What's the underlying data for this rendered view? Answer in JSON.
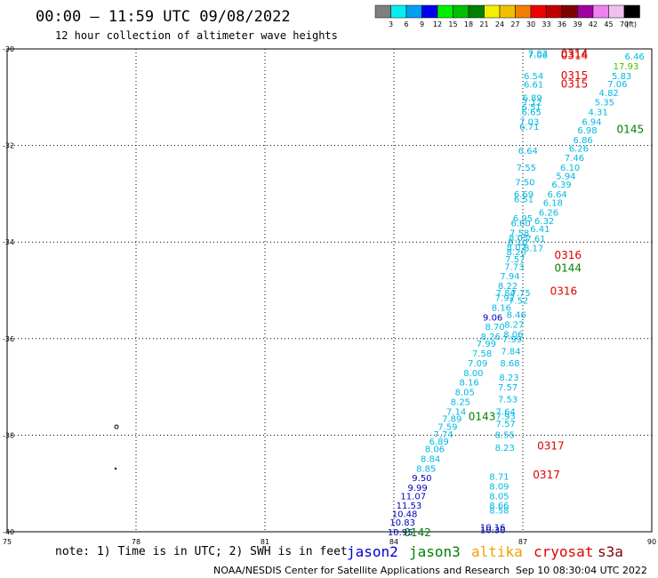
{
  "header": {
    "title": "00:00 – 11:59 UTC 09/08/2022",
    "subtitle": "12 hour collection of altimeter wave heights"
  },
  "colorbar": {
    "labels": [
      "3",
      "6",
      "9",
      "12",
      "15",
      "18",
      "21",
      "24",
      "27",
      "30",
      "33",
      "36",
      "39",
      "42",
      "45",
      "70"
    ],
    "unit": "(ft)",
    "colors": [
      "#7f7f7f",
      "#00f0f0",
      "#00a0f0",
      "#0000f0",
      "#00f000",
      "#00c000",
      "#008000",
      "#f0f000",
      "#f0c000",
      "#f08000",
      "#f00000",
      "#c00000",
      "#800000",
      "#a000a0",
      "#f080f0",
      "#f0c0f0",
      "#000000"
    ]
  },
  "footer": {
    "note": "note: 1) Time is in UTC; 2) SWH is in feet",
    "credit": "NOAA/NESDIS Center for Satellite Applications and Research",
    "timestamp": "Sep 10 08:30:04 UTC 2022",
    "missions": [
      {
        "name": "jason2",
        "color": "#0000d0"
      },
      {
        "name": "jason3",
        "color": "#008000"
      },
      {
        "name": "altika",
        "color": "#f0a000"
      },
      {
        "name": "cryosat",
        "color": "#e00000"
      },
      {
        "name": "s3a",
        "color": "#800000"
      }
    ]
  },
  "chart_data": {
    "type": "scatter",
    "xlim": [
      75,
      90
    ],
    "ylim": [
      -40,
      -30
    ],
    "x_ticks": [
      75,
      78,
      81,
      84,
      87,
      90
    ],
    "y_ticks": [
      -30,
      -32,
      -34,
      -36,
      -38,
      -40
    ],
    "grid": true,
    "colors": {
      "c": "#00b8e0",
      "b": "#0000c0",
      "g": "#008000",
      "r": "#e00000",
      "y": "#40c000"
    },
    "points": [
      {
        "lon": 87.35,
        "lat": -30.08,
        "v": "7.83",
        "c": "c"
      },
      {
        "lon": 87.35,
        "lat": -30.12,
        "v": "7.06",
        "c": "c"
      },
      {
        "lon": 87.25,
        "lat": -30.55,
        "v": "6.54",
        "c": "c"
      },
      {
        "lon": 87.25,
        "lat": -30.73,
        "v": "6.61",
        "c": "c"
      },
      {
        "lon": 87.22,
        "lat": -31.0,
        "v": "6.89",
        "c": "c"
      },
      {
        "lon": 87.22,
        "lat": -31.1,
        "v": "7.12",
        "c": "c"
      },
      {
        "lon": 87.2,
        "lat": -31.2,
        "v": "6.51",
        "c": "c"
      },
      {
        "lon": 87.2,
        "lat": -31.3,
        "v": "6.65",
        "c": "c"
      },
      {
        "lon": 87.15,
        "lat": -31.5,
        "v": "7.03",
        "c": "c"
      },
      {
        "lon": 87.15,
        "lat": -31.6,
        "v": "6.71",
        "c": "c"
      },
      {
        "lon": 87.12,
        "lat": -32.1,
        "v": "6.64",
        "c": "c"
      },
      {
        "lon": 87.08,
        "lat": -32.45,
        "v": "7.55",
        "c": "c"
      },
      {
        "lon": 87.05,
        "lat": -32.75,
        "v": "7.50",
        "c": "c"
      },
      {
        "lon": 87.02,
        "lat": -33.0,
        "v": "6.69",
        "c": "c"
      },
      {
        "lon": 87.02,
        "lat": -33.1,
        "v": "6.51",
        "c": "c"
      },
      {
        "lon": 87.0,
        "lat": -33.5,
        "v": "6.95",
        "c": "c"
      },
      {
        "lon": 86.95,
        "lat": -33.6,
        "v": "6.60",
        "c": "c"
      },
      {
        "lon": 86.92,
        "lat": -33.8,
        "v": "7.58",
        "c": "c"
      },
      {
        "lon": 86.9,
        "lat": -33.9,
        "v": "8.05",
        "c": "c"
      },
      {
        "lon": 86.88,
        "lat": -34.0,
        "v": "8.10",
        "c": "c"
      },
      {
        "lon": 86.85,
        "lat": -34.1,
        "v": "8.07",
        "c": "c"
      },
      {
        "lon": 86.85,
        "lat": -34.2,
        "v": "8.20",
        "c": "c"
      },
      {
        "lon": 86.82,
        "lat": -34.35,
        "v": "7.57",
        "c": "c"
      },
      {
        "lon": 86.8,
        "lat": -34.5,
        "v": "7.73",
        "c": "c"
      },
      {
        "lon": 86.7,
        "lat": -34.7,
        "v": "7.94",
        "c": "c"
      },
      {
        "lon": 86.65,
        "lat": -34.9,
        "v": "8.22",
        "c": "c"
      },
      {
        "lon": 86.6,
        "lat": -35.05,
        "v": "7.84",
        "c": "c"
      },
      {
        "lon": 86.58,
        "lat": -35.15,
        "v": "7.92",
        "c": "c"
      },
      {
        "lon": 86.5,
        "lat": -35.35,
        "v": "8.16",
        "c": "c"
      },
      {
        "lon": 86.3,
        "lat": -35.55,
        "v": "9.06",
        "c": "b"
      },
      {
        "lon": 86.35,
        "lat": -35.75,
        "v": "8.70",
        "c": "c"
      },
      {
        "lon": 86.25,
        "lat": -35.95,
        "v": "8.26",
        "c": "c"
      },
      {
        "lon": 86.15,
        "lat": -36.1,
        "v": "7.99",
        "c": "c"
      },
      {
        "lon": 86.05,
        "lat": -36.3,
        "v": "7.58",
        "c": "c"
      },
      {
        "lon": 85.95,
        "lat": -36.5,
        "v": "7.09",
        "c": "c"
      },
      {
        "lon": 85.85,
        "lat": -36.7,
        "v": "8.00",
        "c": "c"
      },
      {
        "lon": 85.75,
        "lat": -36.9,
        "v": "8.16",
        "c": "c"
      },
      {
        "lon": 85.65,
        "lat": -37.1,
        "v": "8.05",
        "c": "c"
      },
      {
        "lon": 85.55,
        "lat": -37.3,
        "v": "8.25",
        "c": "c"
      },
      {
        "lon": 85.45,
        "lat": -37.5,
        "v": "7.14",
        "c": "c"
      },
      {
        "lon": 85.35,
        "lat": -37.65,
        "v": "7.89",
        "c": "c"
      },
      {
        "lon": 85.25,
        "lat": -37.82,
        "v": "7.59",
        "c": "c"
      },
      {
        "lon": 85.15,
        "lat": -37.97,
        "v": "7.74",
        "c": "c"
      },
      {
        "lon": 85.05,
        "lat": -38.12,
        "v": "6.89",
        "c": "c"
      },
      {
        "lon": 84.95,
        "lat": -38.28,
        "v": "8.06",
        "c": "c"
      },
      {
        "lon": 84.85,
        "lat": -38.48,
        "v": "8.84",
        "c": "c"
      },
      {
        "lon": 84.75,
        "lat": -38.68,
        "v": "8.85",
        "c": "c"
      },
      {
        "lon": 84.65,
        "lat": -38.88,
        "v": "9.50",
        "c": "b"
      },
      {
        "lon": 84.55,
        "lat": -39.08,
        "v": "9.99",
        "c": "b"
      },
      {
        "lon": 84.45,
        "lat": -39.25,
        "v": "11.07",
        "c": "b"
      },
      {
        "lon": 84.35,
        "lat": -39.45,
        "v": "11.53",
        "c": "b"
      },
      {
        "lon": 84.25,
        "lat": -39.62,
        "v": "10.48",
        "c": "b"
      },
      {
        "lon": 84.2,
        "lat": -39.8,
        "v": "10.83",
        "c": "b"
      },
      {
        "lon": 84.15,
        "lat": -40.0,
        "v": "10.95",
        "c": "b"
      },
      {
        "lon": 89.6,
        "lat": -30.15,
        "v": "6.46",
        "c": "c"
      },
      {
        "lon": 89.4,
        "lat": -30.35,
        "v": "17.93",
        "c": "y"
      },
      {
        "lon": 89.3,
        "lat": -30.55,
        "v": "5.83",
        "c": "c"
      },
      {
        "lon": 89.2,
        "lat": -30.72,
        "v": "7.06",
        "c": "c"
      },
      {
        "lon": 89.0,
        "lat": -30.9,
        "v": "4.82",
        "c": "c"
      },
      {
        "lon": 88.9,
        "lat": -31.1,
        "v": "5.35",
        "c": "c"
      },
      {
        "lon": 88.75,
        "lat": -31.3,
        "v": "4.31",
        "c": "c"
      },
      {
        "lon": 88.6,
        "lat": -31.5,
        "v": "6.94",
        "c": "c"
      },
      {
        "lon": 88.5,
        "lat": -31.68,
        "v": "6.98",
        "c": "c"
      },
      {
        "lon": 88.4,
        "lat": -31.88,
        "v": "6.86",
        "c": "c"
      },
      {
        "lon": 88.3,
        "lat": -32.05,
        "v": "6.26",
        "c": "c"
      },
      {
        "lon": 88.2,
        "lat": -32.25,
        "v": "7.46",
        "c": "c"
      },
      {
        "lon": 88.1,
        "lat": -32.45,
        "v": "6.10",
        "c": "c"
      },
      {
        "lon": 88.0,
        "lat": -32.62,
        "v": "5.94",
        "c": "c"
      },
      {
        "lon": 87.9,
        "lat": -32.8,
        "v": "6.39",
        "c": "c"
      },
      {
        "lon": 87.8,
        "lat": -33.0,
        "v": "6.64",
        "c": "c"
      },
      {
        "lon": 87.7,
        "lat": -33.18,
        "v": "6.18",
        "c": "c"
      },
      {
        "lon": 87.6,
        "lat": -33.38,
        "v": "6.26",
        "c": "c"
      },
      {
        "lon": 87.5,
        "lat": -33.55,
        "v": "6.32",
        "c": "c"
      },
      {
        "lon": 87.4,
        "lat": -33.72,
        "v": "6.41",
        "c": "c"
      },
      {
        "lon": 87.3,
        "lat": -33.92,
        "v": "7.61",
        "c": "c"
      },
      {
        "lon": 87.25,
        "lat": -34.12,
        "v": "8.17",
        "c": "c"
      },
      {
        "lon": 86.95,
        "lat": -35.05,
        "v": "7.75",
        "c": "c"
      },
      {
        "lon": 86.9,
        "lat": -35.2,
        "v": "7.52",
        "c": "c"
      },
      {
        "lon": 86.85,
        "lat": -35.5,
        "v": "8.46",
        "c": "c"
      },
      {
        "lon": 86.8,
        "lat": -35.7,
        "v": "8.27",
        "c": "c"
      },
      {
        "lon": 86.78,
        "lat": -35.9,
        "v": "8.06",
        "c": "c"
      },
      {
        "lon": 86.75,
        "lat": -36.0,
        "v": "7.99",
        "c": "c"
      },
      {
        "lon": 86.72,
        "lat": -36.25,
        "v": "7.84",
        "c": "c"
      },
      {
        "lon": 86.7,
        "lat": -36.5,
        "v": "8.68",
        "c": "c"
      },
      {
        "lon": 86.68,
        "lat": -36.8,
        "v": "8.23",
        "c": "c"
      },
      {
        "lon": 86.65,
        "lat": -37.0,
        "v": "7.57",
        "c": "c"
      },
      {
        "lon": 86.65,
        "lat": -37.25,
        "v": "7.53",
        "c": "c"
      },
      {
        "lon": 86.6,
        "lat": -37.5,
        "v": "7.64",
        "c": "c"
      },
      {
        "lon": 86.6,
        "lat": -37.6,
        "v": "7.93",
        "c": "c"
      },
      {
        "lon": 86.6,
        "lat": -37.75,
        "v": "7.57",
        "c": "c"
      },
      {
        "lon": 86.58,
        "lat": -37.98,
        "v": "8.55",
        "c": "c"
      },
      {
        "lon": 86.58,
        "lat": -38.25,
        "v": "8.23",
        "c": "c"
      },
      {
        "lon": 86.45,
        "lat": -38.85,
        "v": "8.71",
        "c": "c"
      },
      {
        "lon": 86.45,
        "lat": -39.05,
        "v": "8.09",
        "c": "c"
      },
      {
        "lon": 86.45,
        "lat": -39.25,
        "v": "8.05",
        "c": "c"
      },
      {
        "lon": 86.45,
        "lat": -39.45,
        "v": "8.66",
        "c": "c"
      },
      {
        "lon": 86.45,
        "lat": -39.55,
        "v": "8.58",
        "c": "c"
      },
      {
        "lon": 86.3,
        "lat": -39.9,
        "v": "10.16",
        "c": "b"
      },
      {
        "lon": 86.3,
        "lat": -39.95,
        "v": "10.30",
        "c": "b"
      }
    ],
    "cycle_labels": [
      {
        "lon": 88.2,
        "lat": -30.08,
        "v": "0314",
        "c": "r"
      },
      {
        "lon": 88.2,
        "lat": -30.12,
        "v": "0314",
        "c": "r"
      },
      {
        "lon": 88.2,
        "lat": -30.53,
        "v": "0315",
        "c": "r"
      },
      {
        "lon": 88.2,
        "lat": -30.71,
        "v": "0315",
        "c": "r"
      },
      {
        "lon": 89.5,
        "lat": -31.65,
        "v": "0145",
        "c": "g"
      },
      {
        "lon": 88.05,
        "lat": -34.25,
        "v": "0316",
        "c": "r"
      },
      {
        "lon": 88.05,
        "lat": -34.52,
        "v": "0144",
        "c": "g"
      },
      {
        "lon": 87.95,
        "lat": -35.0,
        "v": "0316",
        "c": "r"
      },
      {
        "lon": 86.05,
        "lat": -37.6,
        "v": "0143",
        "c": "g"
      },
      {
        "lon": 87.65,
        "lat": -38.2,
        "v": "0317",
        "c": "r"
      },
      {
        "lon": 87.55,
        "lat": -38.8,
        "v": "0317",
        "c": "r"
      },
      {
        "lon": 84.55,
        "lat": -40.0,
        "v": "0142",
        "c": "g"
      }
    ]
  }
}
